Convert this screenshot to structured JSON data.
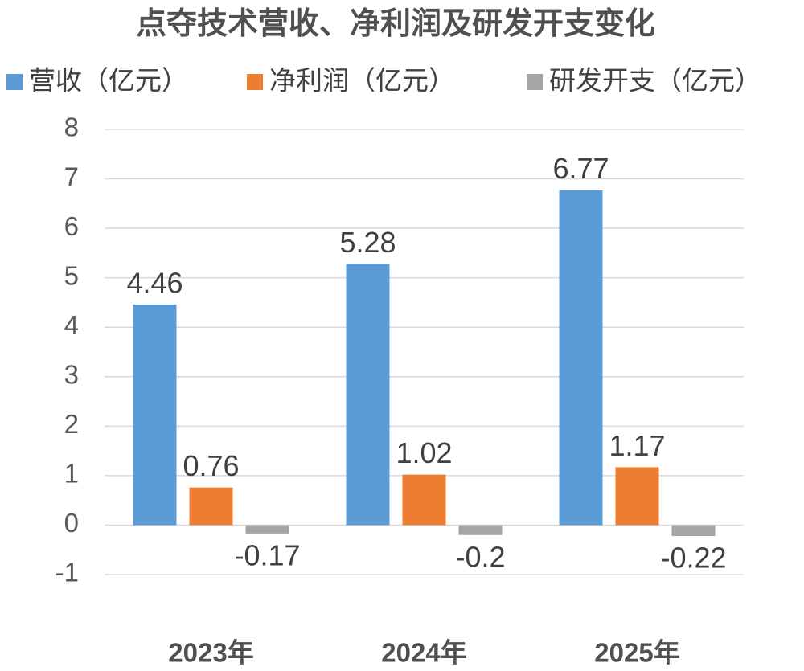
{
  "chart_data": {
    "type": "bar",
    "title": "点夺技术营收、净利润及研发开支变化",
    "categories": [
      "2023年",
      "2024年",
      "2025年"
    ],
    "series": [
      {
        "name": "营收（亿元）",
        "color": "#5b9bd5",
        "values": [
          4.46,
          5.28,
          6.77
        ]
      },
      {
        "name": "净利润（亿元）",
        "color": "#ed7d31",
        "values": [
          0.76,
          1.02,
          1.17
        ]
      },
      {
        "name": "研发开支（亿元）",
        "color": "#a5a5a5",
        "values": [
          -0.17,
          -0.2,
          -0.22
        ]
      }
    ],
    "ylim": [
      -1,
      8
    ],
    "yticks": [
      -1,
      0,
      1,
      2,
      3,
      4,
      5,
      6,
      7,
      8
    ],
    "grid": true,
    "legend": "top"
  }
}
